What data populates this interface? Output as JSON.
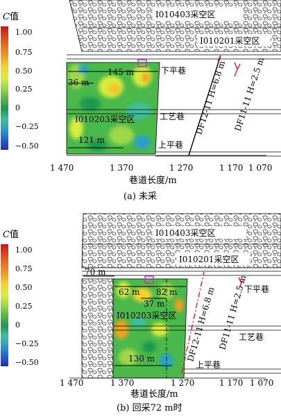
{
  "legend": {
    "title_var": "C",
    "title_suffix": "值",
    "ticks": [
      "1.00",
      "0.75",
      "0.50",
      "0.25",
      "0",
      "−0.25",
      "−0.50"
    ],
    "colors": [
      "#1f2fa8",
      "#2060d8",
      "#2aa0c8",
      "#3cc0a0",
      "#1a9850",
      "#5ab847",
      "#9cd845",
      "#d8ec3c",
      "#f5d428",
      "#f2a01e",
      "#e85a1a",
      "#cc1414"
    ]
  },
  "panels": [
    {
      "caption": "(a)  未采",
      "x_axis_label": "巷道长度/m",
      "x_ticks": [
        "1 470",
        "1 370",
        "1 270",
        "1 170",
        "1 070"
      ],
      "labels": {
        "goaf_top": "I010403采空区",
        "goaf_mid": "I010201采空区",
        "goaf_panel": "I010203采空区",
        "road_lower": "下平巷",
        "road_process": "工艺巷",
        "road_upper": "上平巷",
        "fault1": "DF12-11 H=6.8 m",
        "fault2": "DF11-11 H=2.5 m"
      },
      "dims": [
        "145 m",
        "36 m",
        "121 m"
      ]
    },
    {
      "caption": "(b)  回采72 m时",
      "x_axis_label": "巷道长度/m",
      "x_ticks": [
        "1 470",
        "1 370",
        "1 270",
        "1 170",
        "1 070"
      ],
      "labels": {
        "goaf_top": "I010403采空区",
        "goaf_mid": "I010201采空区",
        "goaf_panel": "I010203采空区",
        "road_lower": "下平巷",
        "road_process": "工艺巷",
        "road_upper": "上平巷",
        "fault1": "DF12-11 H=6.8 m",
        "fault2": "DF11-11 H=2.5 m"
      },
      "dims": [
        "70 m",
        "62 m",
        "37 m",
        "82 m",
        "130 m"
      ]
    }
  ]
}
